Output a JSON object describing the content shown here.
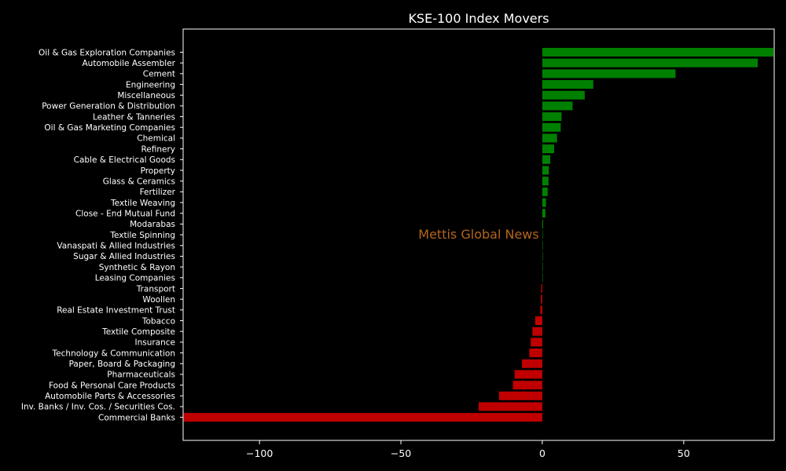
{
  "chart_data": {
    "type": "bar",
    "orientation": "horizontal",
    "title": "KSE-100 Index Movers",
    "watermark": "Mettis Global News",
    "xlim": [
      -127,
      82
    ],
    "xticks": [
      -100,
      -50,
      0,
      50
    ],
    "xtick_labels": [
      "−100",
      "−50",
      "0",
      "50"
    ],
    "positive_color": "#008000",
    "negative_color": "#c00000",
    "watermark_color": "#b5651d",
    "categories": [
      "Oil & Gas Exploration Companies",
      "Automobile Assembler",
      "Cement",
      "Engineering",
      "Miscellaneous",
      "Power Generation & Distribution",
      "Leather & Tanneries",
      "Oil & Gas Marketing Companies",
      "Chemical",
      "Refinery",
      "Cable & Electrical Goods",
      "Property",
      "Glass & Ceramics",
      "Fertilizer",
      "Textile Weaving",
      "Close - End Mutual Fund",
      "Modarabas",
      "Textile Spinning",
      "Vanaspati & Allied Industries",
      "Sugar & Allied Industries",
      "Synthetic & Rayon",
      "Leasing Companies",
      "Transport",
      "Woollen",
      "Real Estate Investment Trust",
      "Tobacco",
      "Textile Composite",
      "Insurance",
      "Technology & Communication",
      "Paper, Board & Packaging",
      "Pharmaceuticals",
      "Food & Personal Care Products",
      "Automobile Parts & Accessories",
      "Inv. Banks / Inv. Cos. / Securities Cos.",
      "Commercial Banks"
    ],
    "values": [
      81.7,
      76.2,
      47.1,
      18.0,
      15.0,
      10.7,
      6.8,
      6.5,
      5.2,
      4.2,
      2.8,
      2.3,
      2.2,
      1.9,
      1.3,
      1.1,
      0.3,
      0.1,
      0.05,
      0.04,
      0.02,
      0.01,
      -0.4,
      -0.5,
      -0.7,
      -2.5,
      -3.5,
      -4.1,
      -4.6,
      -7.2,
      -9.8,
      -10.4,
      -15.3,
      -22.5,
      -126.8
    ]
  }
}
